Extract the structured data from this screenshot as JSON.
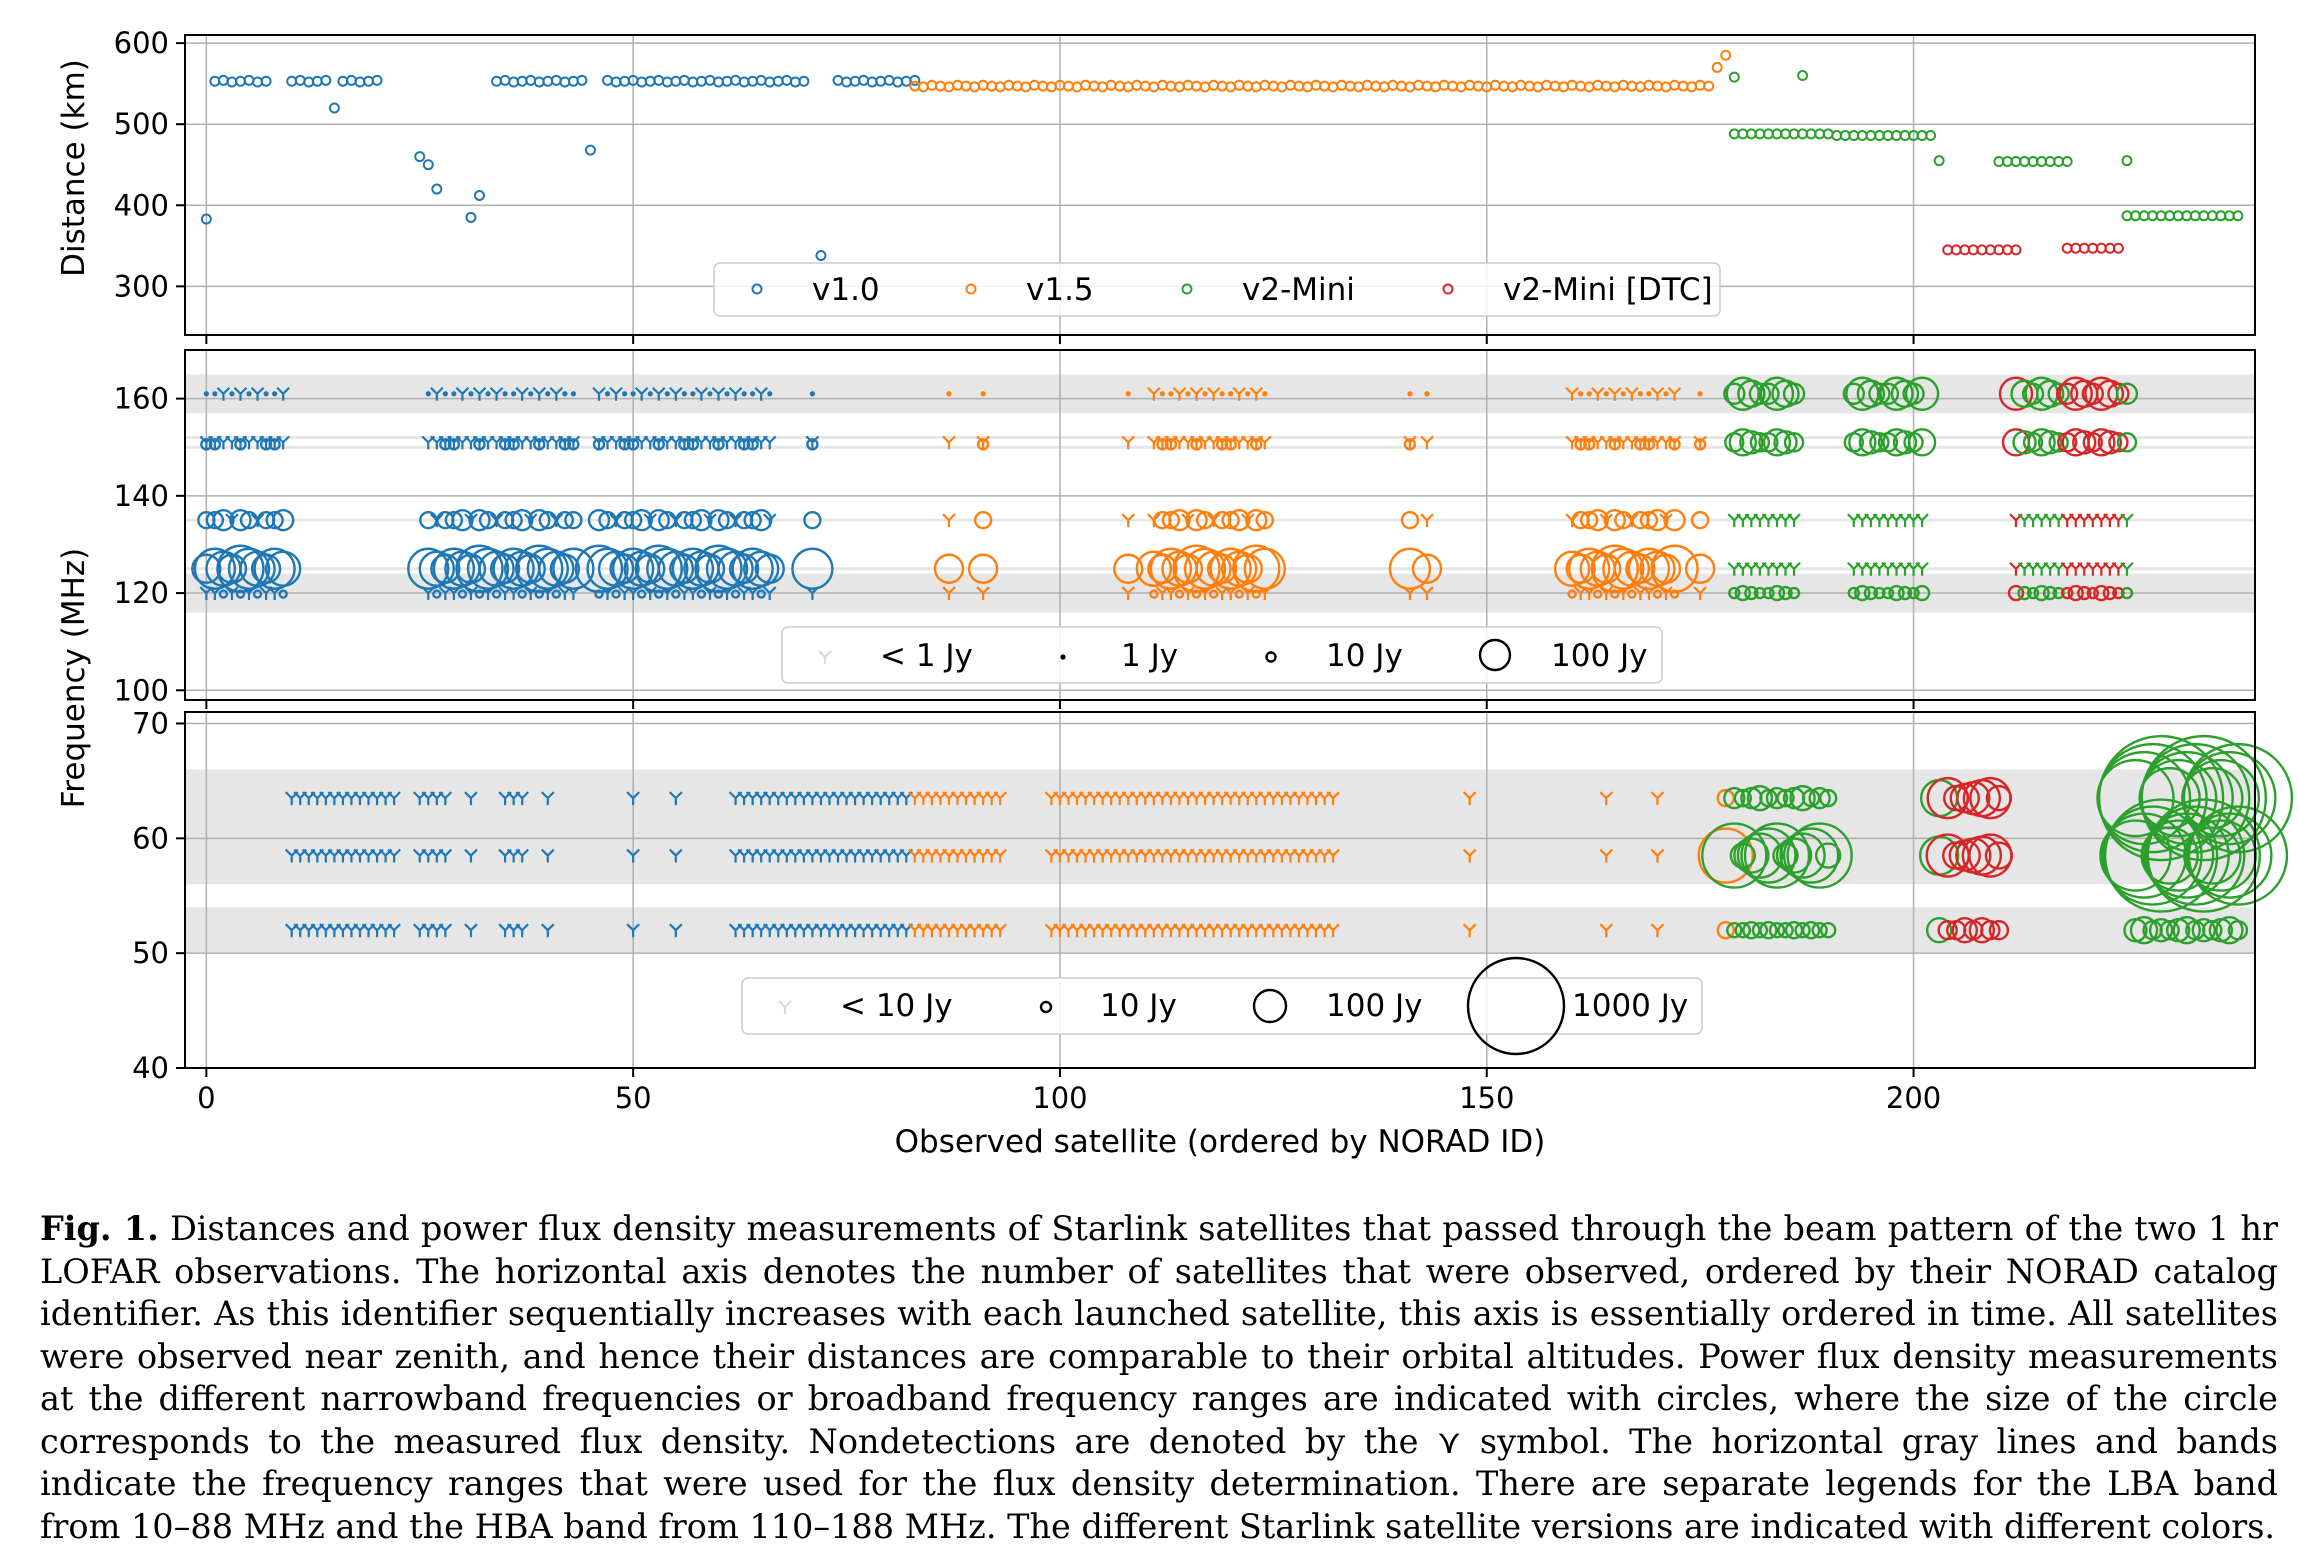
{
  "caption": {
    "label": "Fig. 1.",
    "text": "Distances and power flux density measurements of Starlink satellites that passed through the beam pattern of the two 1 hr LOFAR observations. The horizontal axis denotes the number of satellites that were observed, ordered by their NORAD catalog identifier. As this identifier sequentially increases with each launched satellite, this axis is essentially ordered in time. All satellites were observed near zenith, and hence their distances are comparable to their orbital altitudes. Power flux density measurements at the different narrowband frequencies or broadband frequency ranges are indicated with circles, where the size of the circle corresponds to the measured flux density. Nondetections are denoted by the ⋎ symbol. The horizontal gray lines and bands indicate the frequency ranges that were used for the flux density determination. There are separate legends for the LBA band from 10–88 MHz and the HBA band from 110–188 MHz. The different Starlink satellite versions are indicated with different colors."
  },
  "chart_data": [
    {
      "type": "scatter",
      "panel": "distance",
      "ylabel": "Distance (km)",
      "xlabel": "",
      "xlim": [
        -2.5,
        240
      ],
      "ylim": [
        240,
        610
      ],
      "yticks": [
        300,
        400,
        500,
        600
      ],
      "grid": true,
      "legend_position": "bottom-center",
      "series": [
        {
          "name": "v1.0",
          "color": "#1f77b4",
          "x_range": [
            0,
            83
          ],
          "typical_y": 553,
          "outliers": [
            [
              0,
              383
            ],
            [
              15,
              520
            ],
            [
              25,
              460
            ],
            [
              26,
              450
            ],
            [
              27,
              420
            ],
            [
              31,
              385
            ],
            [
              32,
              412
            ],
            [
              45,
              468
            ],
            [
              72,
              338
            ]
          ],
          "gaps": [
            [
              8,
              9
            ],
            [
              21,
              24
            ],
            [
              28,
              33
            ],
            [
              46,
              46
            ],
            [
              71,
              73
            ]
          ]
        },
        {
          "name": "v1.5",
          "color": "#ff7f0e",
          "x_range": [
            83,
            177
          ],
          "typical_y": 547,
          "outliers": [
            [
              177,
              570
            ],
            [
              178,
              585
            ]
          ]
        },
        {
          "name": "v2-Mini",
          "color": "#2ca02c",
          "groups": [
            {
              "x_range": [
                179,
                190
              ],
              "y": 489
            },
            {
              "x_range": [
                191,
                202
              ],
              "y": 487
            },
            {
              "x_range": [
                210,
                218
              ],
              "y": 455
            },
            {
              "x_range": [
                225,
                238
              ],
              "y": 388
            }
          ],
          "outliers": [
            [
              179,
              558
            ],
            [
              187,
              560
            ],
            [
              203,
              455
            ],
            [
              225,
              455
            ]
          ]
        },
        {
          "name": "v2-Mini [DTC]",
          "color": "#d62728",
          "groups": [
            {
              "x_range": [
                204,
                212
              ],
              "y": 346
            },
            {
              "x_range": [
                218,
                224
              ],
              "y": 348
            }
          ]
        }
      ]
    },
    {
      "type": "scatter",
      "panel": "HBA frequency",
      "ylabel": "Frequency (MHz)",
      "ylim": [
        98,
        170
      ],
      "yticks": [
        100,
        120,
        140,
        160
      ],
      "grid": true,
      "gray_bands_MHz": [
        [
          116,
          124
        ],
        [
          157,
          165
        ]
      ],
      "gray_lines_MHz": [
        125,
        135,
        150,
        152
      ],
      "measured_rows_MHz": [
        120,
        125,
        135,
        150,
        161
      ],
      "legend_position": "bottom-center",
      "legend": [
        "< 1 Jy",
        "1 Jy",
        "10 Jy",
        "100 Jy"
      ]
    },
    {
      "type": "scatter",
      "panel": "LBA frequency",
      "xlabel": "Observed satellite (ordered by NORAD ID)",
      "xlim": [
        -2.5,
        240
      ],
      "xticks": [
        0,
        50,
        100,
        150,
        200
      ],
      "ylim": [
        40,
        71
      ],
      "yticks": [
        40,
        50,
        60,
        70
      ],
      "grid": true,
      "gray_bands_MHz": [
        [
          50,
          54
        ],
        [
          56,
          66
        ]
      ],
      "gray_lines_MHz": [
        61
      ],
      "measured_rows_MHz": [
        52,
        58.5,
        63.5
      ],
      "legend_position": "bottom-center",
      "legend": [
        "< 10 Jy",
        "10 Jy",
        "100 Jy",
        "1000 Jy"
      ]
    }
  ],
  "ui_colors": {
    "v1.0": "#1f77b4",
    "v1.5": "#ff7f0e",
    "v2-Mini": "#2ca02c",
    "v2-Mini [DTC]": "#d62728",
    "band": "#e6e6e6",
    "grid": "#b0b0b0"
  }
}
